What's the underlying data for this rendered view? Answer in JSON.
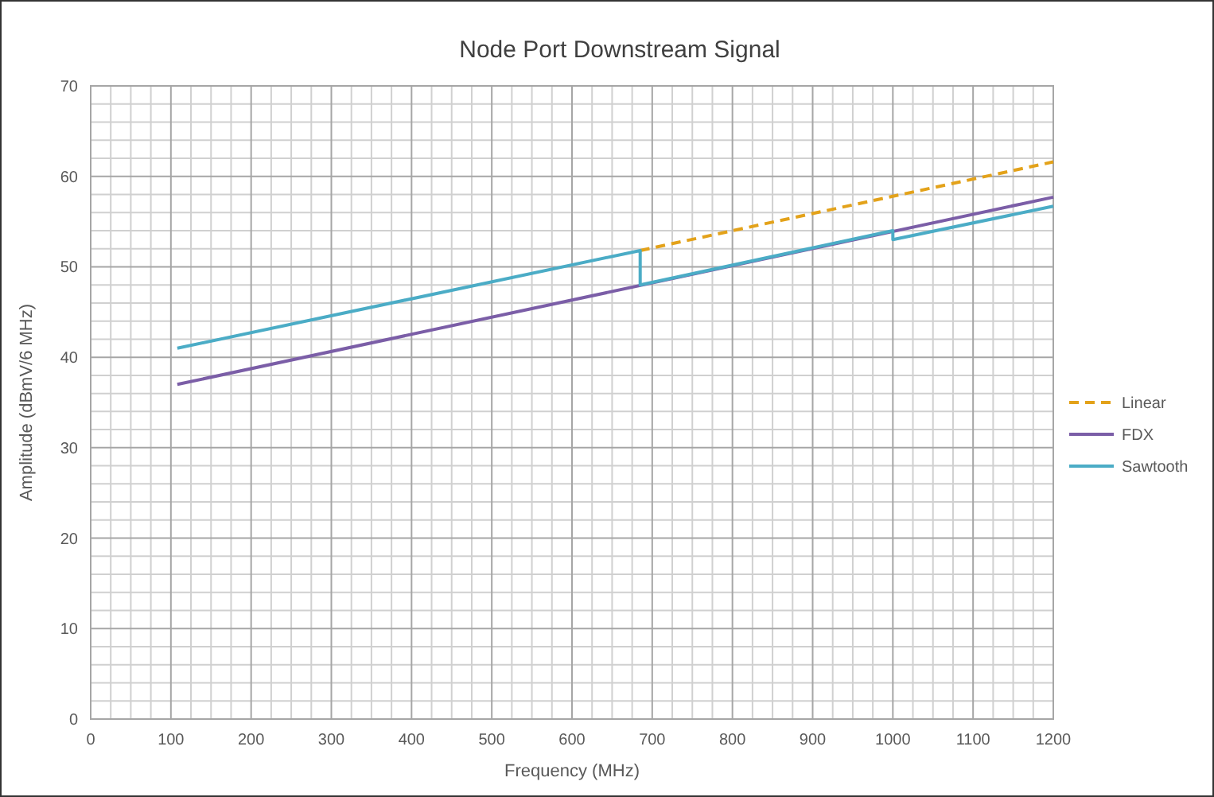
{
  "chart_data": {
    "type": "line",
    "title": "Node Port Downstream Signal",
    "xlabel": "Frequency  (MHz)",
    "ylabel": "Amplitude (dBmV/6 MHz)",
    "xlim": [
      0,
      1200
    ],
    "xticks": [
      0,
      100,
      200,
      300,
      400,
      500,
      600,
      700,
      800,
      900,
      1000,
      1100,
      1200
    ],
    "ylim": [
      0,
      70
    ],
    "yticks": [
      0,
      10,
      20,
      30,
      40,
      50,
      60,
      70
    ],
    "grid": true,
    "legend": "right",
    "series": [
      {
        "name": "Linear",
        "color": "#e3a21a",
        "line_style": "dashed",
        "x": [
          685,
          1200
        ],
        "values": [
          51.8,
          61.6
        ]
      },
      {
        "name": "FDX",
        "color": "#7b5ea7",
        "line_style": "solid",
        "x": [
          108,
          1200
        ],
        "values": [
          37,
          57.7
        ]
      },
      {
        "name": "Sawtooth",
        "color": "#4bacc6",
        "line_style": "solid",
        "x": [
          108,
          685,
          685,
          1000,
          1000,
          1200
        ],
        "values": [
          41,
          51.8,
          48,
          54,
          53,
          56.7
        ]
      }
    ]
  }
}
